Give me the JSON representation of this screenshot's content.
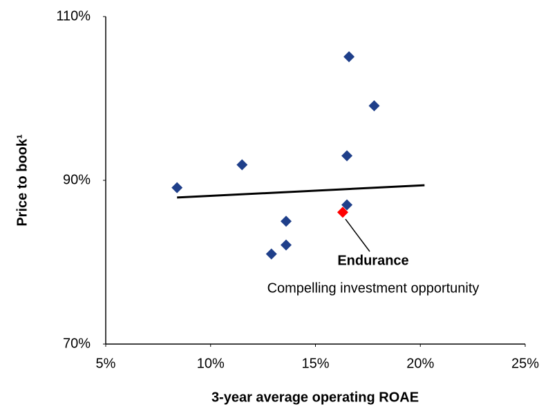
{
  "chart_data": {
    "type": "scatter",
    "x_label": "3-year average operating ROAE",
    "y_label": "Price to book¹",
    "xlim": [
      5,
      25
    ],
    "ylim": [
      70,
      110
    ],
    "xticks": [
      {
        "value": 5,
        "label": "5%"
      },
      {
        "value": 10,
        "label": "10%"
      },
      {
        "value": 15,
        "label": "15%"
      },
      {
        "value": 20,
        "label": "20%"
      },
      {
        "value": 25,
        "label": "25%"
      }
    ],
    "yticks": [
      {
        "value": 70,
        "label": "70%"
      },
      {
        "value": 90,
        "label": "90%"
      },
      {
        "value": 110,
        "label": "110%"
      }
    ],
    "grid": false,
    "series": [
      {
        "color": "#1f3f8a",
        "x": [
          8.4,
          11.5,
          13.6,
          13.6,
          12.9,
          16.6,
          17.8,
          16.5,
          16.5
        ],
        "values": [
          89.1,
          91.9,
          85.0,
          82.1,
          81.0,
          105.1,
          99.1,
          93.0,
          87.0
        ]
      },
      {
        "name": "Endurance",
        "color": "#ff0000",
        "x": [
          16.3
        ],
        "values": [
          86.1
        ]
      }
    ],
    "trendline": {
      "color": "#000000",
      "x": [
        8.4,
        20.2
      ],
      "values": [
        87.9,
        89.4
      ]
    },
    "annotation": "Compelling investment opportunity"
  }
}
